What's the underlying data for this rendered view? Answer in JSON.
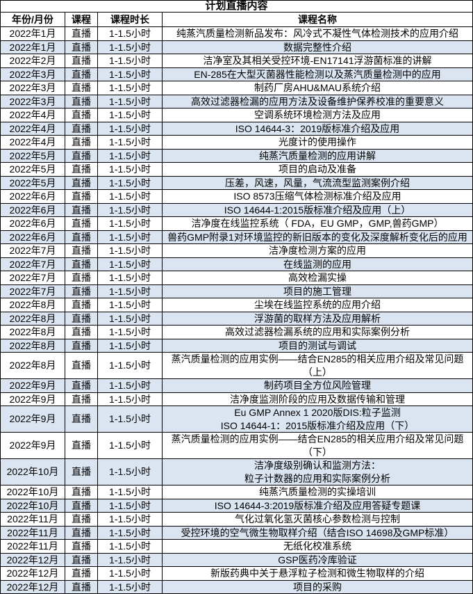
{
  "title": "计划直播内容",
  "columns": [
    "年份/月份",
    "课程",
    "课程时长",
    "课程名称"
  ],
  "colors": {
    "row_base": "#ffffff",
    "row_alt": "#dbe5f1",
    "border": "#000000",
    "text": "#000000"
  },
  "rows": [
    {
      "month": "2022年1月",
      "type": "直播",
      "duration": "1-1.5小时",
      "name": "纯蒸汽质量检测新品发布：风冷式不凝性气体检测技术的应用介绍"
    },
    {
      "month": "2022年1月",
      "type": "直播",
      "duration": "1-1.5小时",
      "name": "数据完整性介绍"
    },
    {
      "month": "2022年2月",
      "type": "直播",
      "duration": "1-1.5小时",
      "name": "洁净室及其相关受控环境-EN17141浮游菌标准的讲解"
    },
    {
      "month": "2022年3月",
      "type": "直播",
      "duration": "1-1.5小时",
      "name": "EN-285在大型灭菌器性能检测以及蒸汽质量检测中的应用"
    },
    {
      "month": "2022年3月",
      "type": "直播",
      "duration": "1-1.5小时",
      "name": "制药厂房AHU&MAU系统介绍"
    },
    {
      "month": "2022年3月",
      "type": "直播",
      "duration": "1-1.5小时",
      "name": "高效过滤器检漏的应用方法及设备维护保养校准的重要意义"
    },
    {
      "month": "2022年4月",
      "type": "直播",
      "duration": "1-1.5小时",
      "name": "空调系统环境检测方法及应用"
    },
    {
      "month": "2022年4月",
      "type": "直播",
      "duration": "1-1.5小时",
      "name": "ISO 14644-3：2019版标准介绍及应用"
    },
    {
      "month": "2022年4月",
      "type": "直播",
      "duration": "1-1.5小时",
      "name": "光度计的使用操作"
    },
    {
      "month": "2022年5月",
      "type": "直播",
      "duration": "1-1.5小时",
      "name": "纯蒸汽质量检测的应用讲解"
    },
    {
      "month": "2022年5月",
      "type": "直播",
      "duration": "1-1.5小时",
      "name": "项目的启动及准备"
    },
    {
      "month": "2022年5月",
      "type": "直播",
      "duration": "1-1.5小时",
      "name": "压差，风速，风量，气流流型监测案例介绍"
    },
    {
      "month": "2022年6月",
      "type": "直播",
      "duration": "1-1.5小时",
      "name": "ISO 8573压缩气体检测标准介绍及应用"
    },
    {
      "month": "2022年6月",
      "type": "直播",
      "duration": "1-1.5小时",
      "name": "ISO 14644-1:2015版标准介绍及应用（上）"
    },
    {
      "month": "2022年6月",
      "type": "直播",
      "duration": "1-1.5小时",
      "name": "洁净度在线监控系统（ FDA，EU GMP，GMP,兽药GMP）"
    },
    {
      "month": "2022年6月",
      "type": "直播",
      "duration": "1-1.5小时",
      "name": "兽药GMP附录1对环境监控的新旧版本的变化及深度解析变化后的应用"
    },
    {
      "month": "2022年7月",
      "type": "直播",
      "duration": "1-1.5小时",
      "name": "洁净度检测方案的应用"
    },
    {
      "month": "2022年7月",
      "type": "直播",
      "duration": "1-1.5小时",
      "name": "在线监测的应用"
    },
    {
      "month": "2022年7月",
      "type": "直播",
      "duration": "1-1.5小时",
      "name": "高效检漏实操"
    },
    {
      "month": "2022年7月",
      "type": "直播",
      "duration": "1-1.5小时",
      "name": "项目的施工管理"
    },
    {
      "month": "2022年8月",
      "type": "直播",
      "duration": "1-1.5小时",
      "name": "尘埃在线监控系统的应用介绍"
    },
    {
      "month": "2022年8月",
      "type": "直播",
      "duration": "1-1.5小时",
      "name": "浮游菌的取样方法及应用解析"
    },
    {
      "month": "2022年8月",
      "type": "直播",
      "duration": "1-1.5小时",
      "name": "高效过滤器检漏系统的应用和实际案例分析"
    },
    {
      "month": "2022年8月",
      "type": "直播",
      "duration": "1-1.5小时",
      "name": "项目的测试与调试"
    },
    {
      "month": "2022年8月",
      "type": "直播",
      "duration": "1-1.5小时",
      "name": "蒸汽质量检测的应用实例——结合EN285的相关应用介绍及常见问题\n（上）"
    },
    {
      "month": "2022年9月",
      "type": "直播",
      "duration": "1-1.5小时",
      "name": "制药项目全方位风险管理"
    },
    {
      "month": "2022年9月",
      "type": "直播",
      "duration": "1-1.5小时",
      "name": "洁净度监测阶段的应用及数据传输和管理"
    },
    {
      "month": "2022年9月",
      "type": "直播",
      "duration": "1-1.5小时",
      "name": "Eu GMP Annex 1 2020版DIS:粒子监测\nISO 14644-1：2015版标准介绍及应用（下）"
    },
    {
      "month": "2022年9月",
      "type": "直播",
      "duration": "1-1.5小时",
      "name": "蒸汽质量检测的应用实例——结合EN285的相关应用介绍及常见问题\n（下）"
    },
    {
      "month": "2022年10月",
      "type": "直播",
      "duration": "1-1.5小时",
      "name": "洁净度级别确认和监测方法：\n粒子计数器的应用和实际案例分析"
    },
    {
      "month": "2022年10月",
      "type": "直播",
      "duration": "1-1.5小时",
      "name": "纯蒸汽质量检测的实操培训"
    },
    {
      "month": "2022年10月",
      "type": "直播",
      "duration": "1-1.5小时",
      "name": "ISO 14644-3:2019版标准介绍及应用答疑专题课"
    },
    {
      "month": "2022年11月",
      "type": "直播",
      "duration": "1-1.5小时",
      "name": "气化过氧化氢灭菌核心参数检测与控制"
    },
    {
      "month": "2022年11月",
      "type": "直播",
      "duration": "1-1.5小时",
      "name": "受控环境的空气微生物取样介绍（结合ISO 14698及GMP标准）"
    },
    {
      "month": "2022年11月",
      "type": "直播",
      "duration": "1-1.5小时",
      "name": "无纸化校准系统"
    },
    {
      "month": "2022年12月",
      "type": "直播",
      "duration": "1-1.5小时",
      "name": "GSP医药冷库验证"
    },
    {
      "month": "2022年12月",
      "type": "直播",
      "duration": "1-1.5小时",
      "name": "新版药典中关于悬浮粒子检测和微生物取样的介绍"
    },
    {
      "month": "2022年12月",
      "type": "直播",
      "duration": "1-1.5小时",
      "name": "项目的采购"
    }
  ]
}
